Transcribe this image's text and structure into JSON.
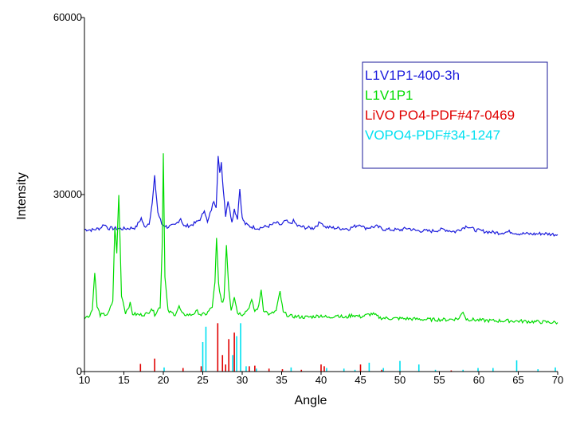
{
  "chart_data": {
    "type": "line",
    "title": "",
    "xlabel": "Angle",
    "ylabel": "Intensity",
    "xlim": [
      10,
      70
    ],
    "ylim": [
      0,
      60000
    ],
    "x_ticks": [
      10,
      15,
      20,
      25,
      30,
      35,
      40,
      45,
      50,
      55,
      60,
      65,
      70
    ],
    "y_ticks": [
      0,
      30000,
      60000
    ],
    "grid": false,
    "legend_position": "top-right",
    "series": [
      {
        "name": "L1V1P1-400-3h",
        "color": "#1a1adc",
        "style": "line",
        "baseline": 24000,
        "points": [
          [
            10.0,
            24100
          ],
          [
            11.0,
            24000
          ],
          [
            12.0,
            24300
          ],
          [
            12.5,
            25000
          ],
          [
            13.0,
            24300
          ],
          [
            15.0,
            24200
          ],
          [
            16.5,
            24400
          ],
          [
            17.2,
            26000
          ],
          [
            17.6,
            24500
          ],
          [
            18.2,
            25200
          ],
          [
            18.6,
            28500
          ],
          [
            18.9,
            33000
          ],
          [
            19.3,
            27000
          ],
          [
            19.8,
            25000
          ],
          [
            20.5,
            24500
          ],
          [
            21.5,
            24800
          ],
          [
            22.2,
            26000
          ],
          [
            22.6,
            24600
          ],
          [
            23.5,
            24800
          ],
          [
            24.2,
            25300
          ],
          [
            24.8,
            26000
          ],
          [
            25.2,
            27500
          ],
          [
            25.6,
            25200
          ],
          [
            26.1,
            27500
          ],
          [
            26.4,
            29000
          ],
          [
            26.7,
            28000
          ],
          [
            26.95,
            36500
          ],
          [
            27.15,
            33500
          ],
          [
            27.35,
            35500
          ],
          [
            27.6,
            31000
          ],
          [
            27.9,
            26500
          ],
          [
            28.2,
            29000
          ],
          [
            28.4,
            27500
          ],
          [
            28.7,
            25500
          ],
          [
            29.0,
            27500
          ],
          [
            29.4,
            26000
          ],
          [
            29.7,
            31000
          ],
          [
            30.0,
            26000
          ],
          [
            30.4,
            25000
          ],
          [
            31.0,
            24600
          ],
          [
            32.0,
            24300
          ],
          [
            33.5,
            24700
          ],
          [
            34.3,
            25200
          ],
          [
            35.0,
            24800
          ],
          [
            35.5,
            25600
          ],
          [
            36.0,
            25000
          ],
          [
            36.5,
            25500
          ],
          [
            37.0,
            24700
          ],
          [
            38.0,
            24400
          ],
          [
            39.0,
            24300
          ],
          [
            40.0,
            25400
          ],
          [
            40.5,
            24500
          ],
          [
            42.0,
            24300
          ],
          [
            43.5,
            24200
          ],
          [
            45.0,
            25000
          ],
          [
            45.5,
            24300
          ],
          [
            47.0,
            24600
          ],
          [
            48.0,
            24100
          ],
          [
            50.0,
            24000
          ],
          [
            51.0,
            24300
          ],
          [
            52.0,
            23900
          ],
          [
            54.0,
            23800
          ],
          [
            55.5,
            24100
          ],
          [
            57.0,
            23700
          ],
          [
            58.5,
            24700
          ],
          [
            59.5,
            24000
          ],
          [
            61.0,
            23700
          ],
          [
            62.5,
            23500
          ],
          [
            64.0,
            23700
          ],
          [
            65.0,
            23400
          ],
          [
            67.0,
            23300
          ],
          [
            68.0,
            23400
          ],
          [
            70.0,
            23200
          ]
        ]
      },
      {
        "name": "L1V1P1",
        "color": "#00dc00",
        "style": "line",
        "baseline": 9000,
        "points": [
          [
            10.0,
            9200
          ],
          [
            10.5,
            9300
          ],
          [
            11.0,
            10500
          ],
          [
            11.3,
            17000
          ],
          [
            11.6,
            11000
          ],
          [
            12.0,
            9600
          ],
          [
            13.0,
            9700
          ],
          [
            13.6,
            12000
          ],
          [
            13.85,
            24500
          ],
          [
            14.1,
            20000
          ],
          [
            14.35,
            30000
          ],
          [
            14.7,
            13000
          ],
          [
            15.2,
            10000
          ],
          [
            15.8,
            11500
          ],
          [
            16.1,
            9800
          ],
          [
            17.0,
            9600
          ],
          [
            18.0,
            9800
          ],
          [
            18.5,
            10800
          ],
          [
            18.9,
            9700
          ],
          [
            19.6,
            11000
          ],
          [
            19.85,
            21000
          ],
          [
            20.0,
            37000
          ],
          [
            20.2,
            16000
          ],
          [
            20.6,
            10200
          ],
          [
            21.5,
            9700
          ],
          [
            22.0,
            11000
          ],
          [
            22.4,
            9700
          ],
          [
            23.5,
            9600
          ],
          [
            24.3,
            10200
          ],
          [
            24.8,
            9600
          ],
          [
            25.5,
            9800
          ],
          [
            26.2,
            11000
          ],
          [
            26.55,
            15000
          ],
          [
            26.75,
            22500
          ],
          [
            27.0,
            15000
          ],
          [
            27.4,
            11500
          ],
          [
            27.7,
            12500
          ],
          [
            28.0,
            21500
          ],
          [
            28.3,
            14000
          ],
          [
            28.6,
            10500
          ],
          [
            29.0,
            12800
          ],
          [
            29.4,
            10000
          ],
          [
            30.0,
            9700
          ],
          [
            30.7,
            10500
          ],
          [
            31.2,
            12000
          ],
          [
            31.6,
            10200
          ],
          [
            32.1,
            11000
          ],
          [
            32.4,
            14000
          ],
          [
            32.7,
            10500
          ],
          [
            33.5,
            9600
          ],
          [
            34.3,
            10300
          ],
          [
            34.8,
            13500
          ],
          [
            35.2,
            10000
          ],
          [
            36.0,
            9400
          ],
          [
            37.0,
            9300
          ],
          [
            38.0,
            9200
          ],
          [
            39.0,
            9300
          ],
          [
            40.0,
            9500
          ],
          [
            41.0,
            9100
          ],
          [
            42.0,
            9600
          ],
          [
            43.0,
            9100
          ],
          [
            44.0,
            9600
          ],
          [
            45.0,
            9300
          ],
          [
            46.5,
            9800
          ],
          [
            47.5,
            9100
          ],
          [
            49.0,
            9000
          ],
          [
            50.0,
            9000
          ],
          [
            52.0,
            8900
          ],
          [
            54.0,
            8800
          ],
          [
            56.0,
            8800
          ],
          [
            57.5,
            9000
          ],
          [
            58.0,
            10200
          ],
          [
            58.4,
            8900
          ],
          [
            60.0,
            8700
          ],
          [
            62.0,
            8600
          ],
          [
            64.0,
            8600
          ],
          [
            66.0,
            8500
          ],
          [
            68.0,
            8400
          ],
          [
            70.0,
            8300
          ]
        ]
      },
      {
        "name": "LiVO PO4-PDF#47-0469",
        "color": "#e00000",
        "style": "stick",
        "sticks": [
          [
            17.1,
            1300
          ],
          [
            18.9,
            2200
          ],
          [
            22.5,
            600
          ],
          [
            24.8,
            900
          ],
          [
            26.9,
            8200
          ],
          [
            27.5,
            2800
          ],
          [
            27.9,
            1200
          ],
          [
            28.3,
            5500
          ],
          [
            29.0,
            6600
          ],
          [
            30.9,
            900
          ],
          [
            31.6,
            1000
          ],
          [
            33.4,
            500
          ],
          [
            35.1,
            400
          ],
          [
            37.5,
            300
          ],
          [
            40.0,
            1200
          ],
          [
            40.4,
            900
          ],
          [
            45.0,
            1200
          ],
          [
            47.7,
            300
          ],
          [
            56.5,
            200
          ]
        ]
      },
      {
        "name": "VOPO4-PDF#34-1247",
        "color": "#00e0f0",
        "style": "stick",
        "sticks": [
          [
            20.1,
            700
          ],
          [
            25.0,
            5000
          ],
          [
            25.4,
            7600
          ],
          [
            28.8,
            2800
          ],
          [
            29.3,
            6000
          ],
          [
            29.8,
            8200
          ],
          [
            30.5,
            900
          ],
          [
            31.8,
            500
          ],
          [
            36.2,
            700
          ],
          [
            40.7,
            600
          ],
          [
            42.9,
            500
          ],
          [
            44.3,
            300
          ],
          [
            46.1,
            1500
          ],
          [
            47.9,
            600
          ],
          [
            50.0,
            1800
          ],
          [
            52.4,
            1200
          ],
          [
            54.5,
            300
          ],
          [
            58.0,
            300
          ],
          [
            59.9,
            600
          ],
          [
            61.8,
            600
          ],
          [
            64.8,
            1900
          ],
          [
            67.5,
            400
          ],
          [
            69.7,
            700
          ]
        ]
      }
    ]
  }
}
